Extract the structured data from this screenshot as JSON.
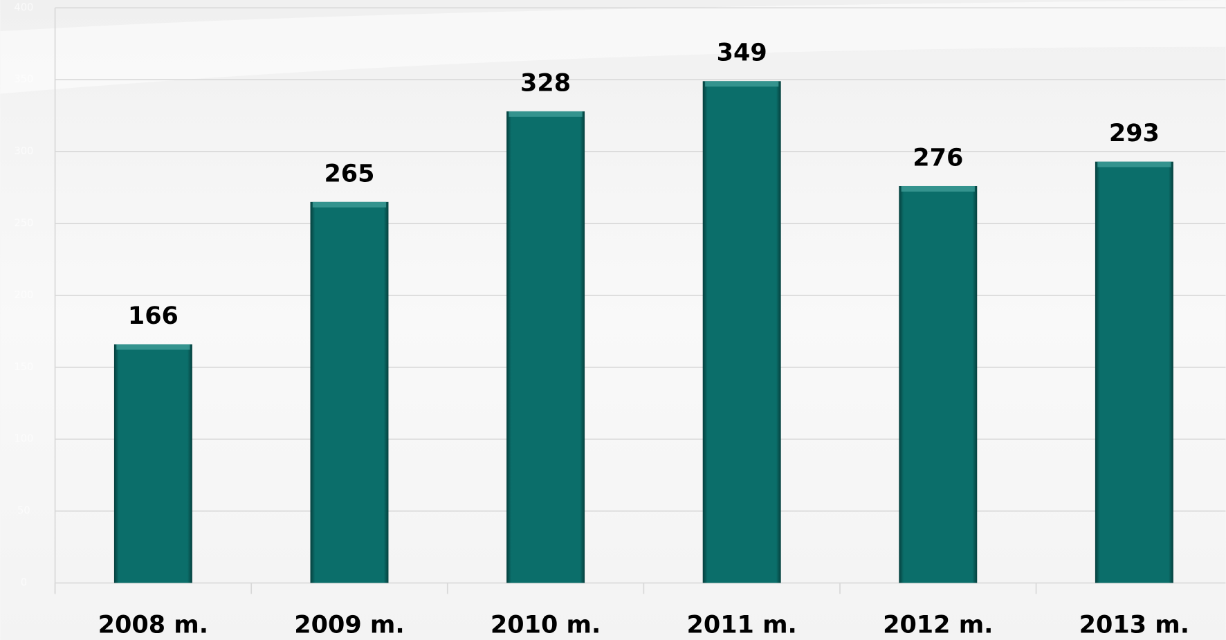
{
  "chart_data": {
    "type": "bar",
    "categories": [
      "2008 m.",
      "2009 m.",
      "2010 m.",
      "2011 m.",
      "2012 m.",
      "2013 m."
    ],
    "values": [
      166,
      265,
      328,
      349,
      276,
      293
    ],
    "color": "#0b6e6a",
    "ylim": [
      0,
      400
    ],
    "yticks": [
      0,
      50,
      100,
      150,
      200,
      250,
      300,
      350,
      400
    ],
    "grid": true
  }
}
